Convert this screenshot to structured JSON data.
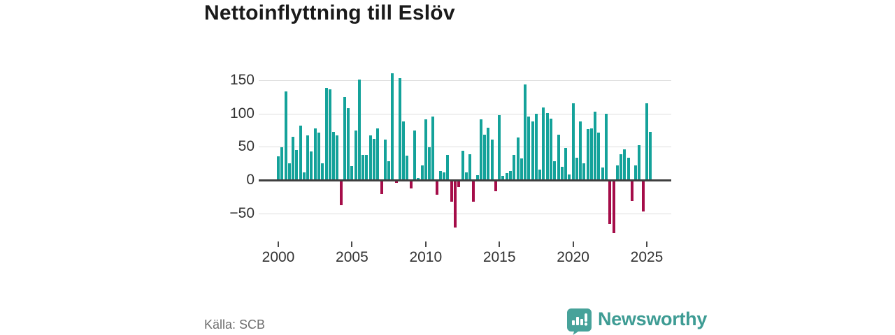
{
  "title": "Nettoinflyttning till Eslöv",
  "footer": {
    "source_label": "Källa: SCB",
    "brand_name": "Newsworthy"
  },
  "colors": {
    "positive_bar": "#14a29a",
    "negative_bar": "#a50d49",
    "gridline": "#dcdcdc",
    "zero_line": "#3f3f3f",
    "axis_text": "#333333",
    "title_text": "#1a1a1a",
    "source_text": "#6e6e6e",
    "brand_teal": "#3e9c94",
    "brand_icon_teal": "#47a29a"
  },
  "chart_data": {
    "type": "bar",
    "title": "Nettoinflyttning till Eslöv",
    "xlabel": "",
    "ylabel": "",
    "frequency": "quarterly",
    "period_start": "2000 Q1",
    "period_end": "2025 Q2",
    "start_year": 2000,
    "grid": true,
    "legend": "none",
    "ylim": [
      -90,
      165
    ],
    "y_ticks": [
      150,
      100,
      50,
      0,
      -50
    ],
    "y_tick_labels": [
      "150",
      "100",
      "50",
      "0",
      "−50"
    ],
    "x_tick_years": [
      2000,
      2005,
      2010,
      2015,
      2020,
      2025
    ],
    "x_tick_labels": [
      "2000",
      "2005",
      "2010",
      "2015",
      "2020",
      "2025"
    ],
    "values": [
      36,
      49,
      133,
      25,
      65,
      45,
      82,
      11,
      67,
      43,
      77,
      71,
      25,
      138,
      136,
      72,
      67,
      -37,
      125,
      108,
      21,
      74,
      151,
      38,
      38,
      67,
      62,
      78,
      -20,
      61,
      28,
      160,
      -3,
      153,
      88,
      37,
      -11,
      74,
      3,
      22,
      91,
      49,
      95,
      -21,
      14,
      11,
      38,
      -31,
      -70,
      -9,
      44,
      11,
      39,
      -31,
      7,
      91,
      68,
      79,
      61,
      -16,
      97,
      6,
      10,
      14,
      38,
      64,
      32,
      143,
      95,
      88,
      99,
      16,
      109,
      101,
      92,
      28,
      68,
      20,
      48,
      8,
      115,
      33,
      88,
      25,
      76,
      78,
      103,
      71,
      19,
      99,
      -65,
      -79,
      22,
      39,
      46,
      33,
      -30,
      22,
      52,
      -46,
      115,
      72
    ]
  }
}
